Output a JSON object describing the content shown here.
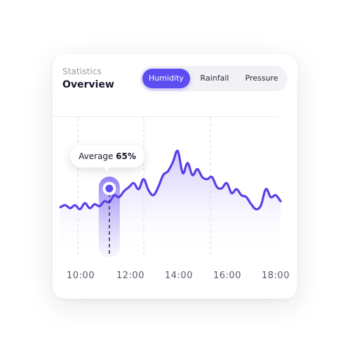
{
  "header": {
    "subtitle": "Statistics",
    "title": "Overview"
  },
  "tabs": [
    {
      "label": "Humidity",
      "active": true
    },
    {
      "label": "Rainfall",
      "active": false
    },
    {
      "label": "Pressure",
      "active": false
    }
  ],
  "tooltip": {
    "label": "Average",
    "value": "65%"
  },
  "colors": {
    "accent": "#5b4df0",
    "line": "#5b3fe6",
    "fill_top": "#c9bdfb",
    "pill": "#a99bf5"
  },
  "chart_data": {
    "type": "area",
    "x_ticks": [
      "10:00",
      "12:00",
      "14:00",
      "16:00",
      "18:00"
    ],
    "x": [
      9.2,
      9.4,
      9.6,
      9.8,
      10.0,
      10.2,
      10.4,
      10.6,
      10.8,
      11.0,
      11.2,
      11.4,
      11.6,
      11.8,
      12.0,
      12.2,
      12.4,
      12.6,
      12.8,
      13.0,
      13.2,
      13.4,
      13.6,
      13.8,
      14.0,
      14.2,
      14.4,
      14.6,
      14.8,
      15.0,
      15.2,
      15.4,
      15.6,
      15.8,
      16.0,
      16.2,
      16.4,
      16.6,
      16.8,
      17.0,
      17.2,
      17.4,
      17.6,
      17.8,
      18.0,
      18.2
    ],
    "values": [
      52,
      54,
      51,
      54,
      50,
      56,
      51,
      55,
      53,
      58,
      57,
      64,
      62,
      68,
      72,
      76,
      70,
      80,
      69,
      64,
      72,
      84,
      88,
      97,
      108,
      86,
      96,
      84,
      90,
      82,
      80,
      82,
      72,
      71,
      76,
      66,
      70,
      64,
      62,
      55,
      50,
      54,
      70,
      62,
      64,
      58
    ],
    "highlight": {
      "x": 11.2,
      "label": "Average",
      "value": "65%"
    },
    "grid": "vertical dashed",
    "ylim": [
      0,
      120
    ]
  }
}
